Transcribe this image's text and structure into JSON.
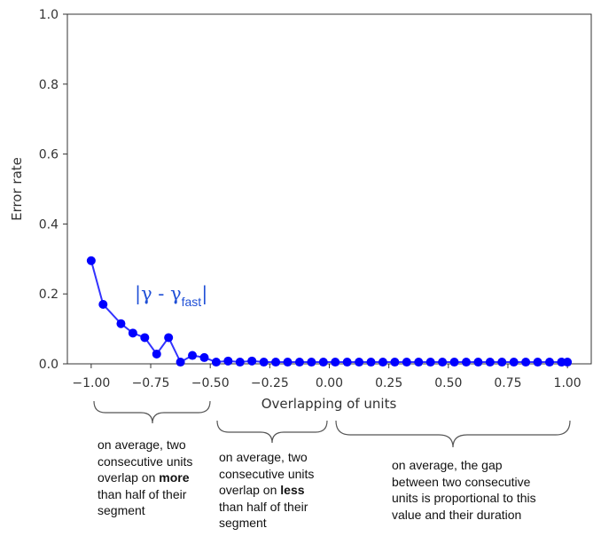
{
  "chart_data": {
    "type": "line",
    "xlabel": "Overlapping of units",
    "ylabel": "Error rate",
    "xlim": [
      -1.1,
      1.1
    ],
    "ylim": [
      0.0,
      1.0
    ],
    "xticks": [
      -1.0,
      -0.75,
      -0.5,
      -0.25,
      0.0,
      0.25,
      0.5,
      0.75,
      1.0
    ],
    "xtick_labels": [
      "−1.00",
      "−0.75",
      "−0.50",
      "−0.25",
      "0.00",
      "0.25",
      "0.50",
      "0.75",
      "1.00"
    ],
    "yticks": [
      0.0,
      0.2,
      0.4,
      0.6,
      0.8,
      1.0
    ],
    "ytick_labels": [
      "0.0",
      "0.2",
      "0.4",
      "0.6",
      "0.8",
      "1.0"
    ],
    "grid": false,
    "series": [
      {
        "color": "#0000ff",
        "x": [
          -1.0,
          -0.95,
          -0.875,
          -0.825,
          -0.775,
          -0.725,
          -0.675,
          -0.625,
          -0.575,
          -0.525,
          -0.475,
          -0.425,
          -0.375,
          -0.325,
          -0.275,
          -0.225,
          -0.175,
          -0.125,
          -0.075,
          -0.025,
          0.025,
          0.075,
          0.125,
          0.175,
          0.225,
          0.275,
          0.325,
          0.375,
          0.425,
          0.475,
          0.525,
          0.575,
          0.625,
          0.675,
          0.725,
          0.775,
          0.825,
          0.875,
          0.925,
          0.975,
          1.0
        ],
        "y": [
          0.295,
          0.17,
          0.115,
          0.088,
          0.075,
          0.028,
          0.075,
          0.005,
          0.024,
          0.018,
          0.005,
          0.008,
          0.005,
          0.008,
          0.005,
          0.005,
          0.005,
          0.005,
          0.005,
          0.005,
          0.005,
          0.005,
          0.005,
          0.005,
          0.005,
          0.005,
          0.005,
          0.005,
          0.005,
          0.005,
          0.005,
          0.005,
          0.005,
          0.005,
          0.005,
          0.005,
          0.005,
          0.005,
          0.005,
          0.005,
          0.005
        ]
      }
    ],
    "annotations": {
      "formula_main": "|γ - γ",
      "formula_sub": "fast",
      "formula_end": "|"
    }
  },
  "annotations": {
    "left": {
      "line1": "on average, two",
      "line2": "consecutive units",
      "line3_pre": "overlap on ",
      "line3_bold": "more",
      "line4": "than half of their",
      "line5": "segment"
    },
    "middle": {
      "line1": "on average, two",
      "line2": "consecutive units",
      "line3_pre": "overlap on ",
      "line3_bold": "less",
      "line4": "than half of their",
      "line5": "segment"
    },
    "right": {
      "line1": "on average, the gap",
      "line2": "between two consecutive",
      "line3": "units is proportional to this",
      "line4": "value and their duration"
    }
  }
}
